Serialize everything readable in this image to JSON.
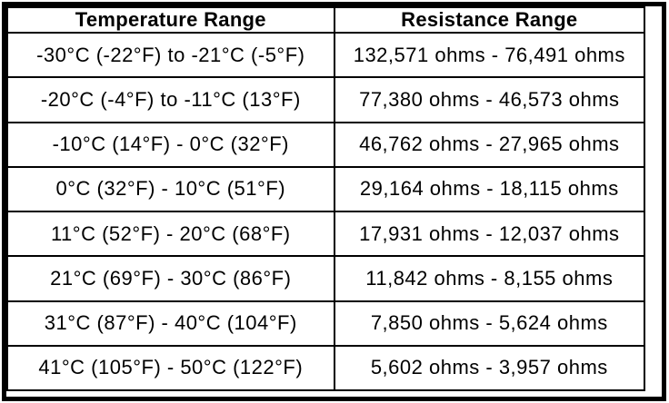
{
  "colors": {
    "border": "#000000",
    "background": "#ffffff",
    "text": "#000000"
  },
  "chart_data": {
    "type": "table",
    "columns": [
      "Temperature Range",
      "Resistance Range"
    ],
    "rows": [
      [
        "-30°C (-22°F) to -21°C (-5°F)",
        "132,571 ohms - 76,491 ohms"
      ],
      [
        "-20°C (-4°F) to -11°C (13°F)",
        "77,380 ohms - 46,573 ohms"
      ],
      [
        "-10°C (14°F) - 0°C (32°F)",
        "46,762 ohms - 27,965 ohms"
      ],
      [
        "0°C (32°F) - 10°C (51°F)",
        "29,164 ohms - 18,115 ohms"
      ],
      [
        "11°C (52°F) - 20°C (68°F)",
        "17,931 ohms - 12,037 ohms"
      ],
      [
        "21°C (69°F) - 30°C (86°F)",
        "11,842 ohms - 8,155 ohms"
      ],
      [
        "31°C (87°F) - 40°C (104°F)",
        "7,850 ohms - 5,624 ohms"
      ],
      [
        "41°C (105°F) - 50°C (122°F)",
        "5,602 ohms - 3,957 ohms"
      ]
    ]
  }
}
